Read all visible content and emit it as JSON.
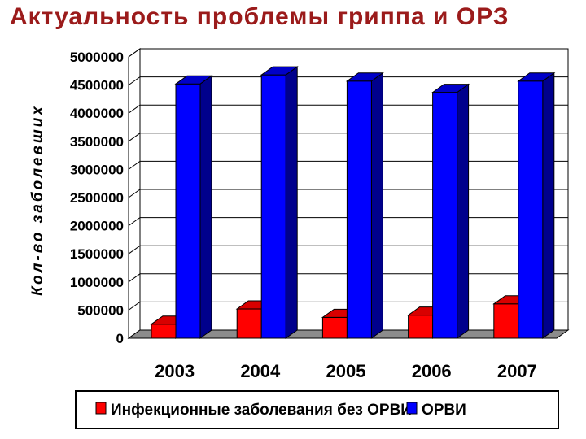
{
  "slide": {
    "title": "Актуальность проблемы гриппа и ОРЗ"
  },
  "colors": {
    "title": "#9b1b1b",
    "series_red": "#ff0000",
    "series_blue": "#0000ff",
    "floor": "#8c8c8c"
  },
  "chart_data": {
    "type": "bar",
    "title": "",
    "xlabel": "",
    "ylabel": "Кол-во заболевших",
    "categories": [
      "2003",
      "2004",
      "2005",
      "2006",
      "2007"
    ],
    "series": [
      {
        "name": "Инфекционные заболевания без ОРВИ",
        "color": "#ff0000",
        "values": [
          250000,
          520000,
          370000,
          410000,
          610000
        ]
      },
      {
        "name": "ОРВИ",
        "color": "#0000ff",
        "values": [
          4520000,
          4680000,
          4570000,
          4370000,
          4570000
        ]
      }
    ],
    "ylim": [
      0,
      5000000
    ],
    "yticks": [
      "0",
      "500000",
      "1000000",
      "1500000",
      "2000000",
      "2500000",
      "3000000",
      "3500000",
      "4000000",
      "4500000",
      "5000000"
    ],
    "grid": true,
    "three_d": true,
    "legend_position": "bottom"
  }
}
